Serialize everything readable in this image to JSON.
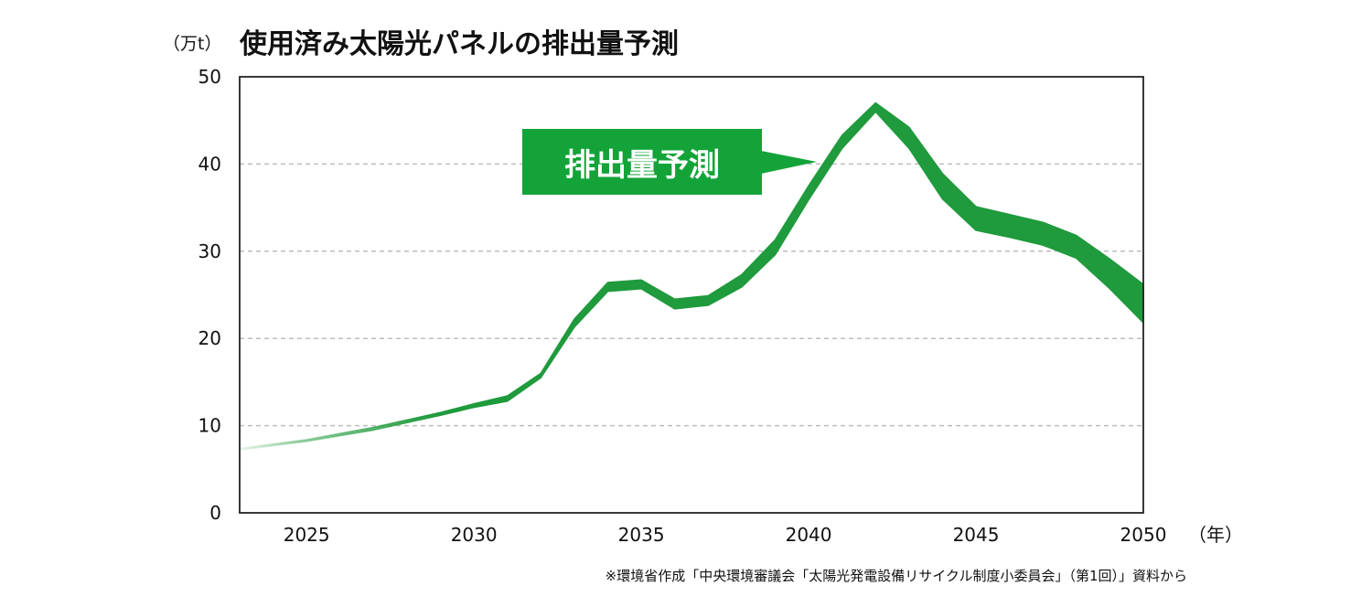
{
  "chart_data": {
    "type": "area",
    "title": "使用済み太陽光パネルの排出量予測",
    "y_unit_label": "（万t）",
    "x_unit_label": "（年）",
    "xlim": [
      2023,
      2050
    ],
    "ylim": [
      0,
      50
    ],
    "x_ticks": [
      "2025",
      "2030",
      "2035",
      "2040",
      "2045",
      "2050"
    ],
    "y_ticks": [
      "0",
      "10",
      "20",
      "30",
      "40",
      "50"
    ],
    "grid": "horizontal dashed",
    "annotation": "排出量予測",
    "source": "※環境省作成「中央環境審議会「太陽光発電設備リサイクル制度小委員会」（第1回）」資料から",
    "series": [
      {
        "x": [
          2023,
          2025,
          2027,
          2029,
          2030,
          2031,
          2032,
          2033,
          2034,
          2035,
          2036,
          2037,
          2038,
          2039,
          2040,
          2041,
          2042,
          2043,
          2044,
          2045,
          2046,
          2047,
          2048,
          2049,
          2050
        ],
        "high": [
          7.4,
          8.4,
          9.8,
          11.5,
          12.5,
          13.4,
          16.0,
          22.2,
          26.4,
          26.7,
          24.5,
          24.9,
          27.3,
          31.3,
          37.5,
          43.3,
          47.0,
          44.2,
          38.9,
          35.1,
          34.2,
          33.3,
          31.8,
          29.1,
          26.2
        ],
        "low": [
          7.2,
          8.2,
          9.5,
          11.2,
          12.1,
          12.8,
          15.5,
          21.3,
          25.4,
          25.7,
          23.4,
          23.8,
          25.9,
          29.6,
          35.9,
          41.8,
          46.0,
          41.8,
          36.0,
          32.4,
          31.6,
          30.7,
          29.2,
          25.7,
          21.8
        ]
      }
    ],
    "colors": {
      "band": "#1f9a3c",
      "callout_bg": "#13a339",
      "grid": "#bdbdbd"
    }
  }
}
